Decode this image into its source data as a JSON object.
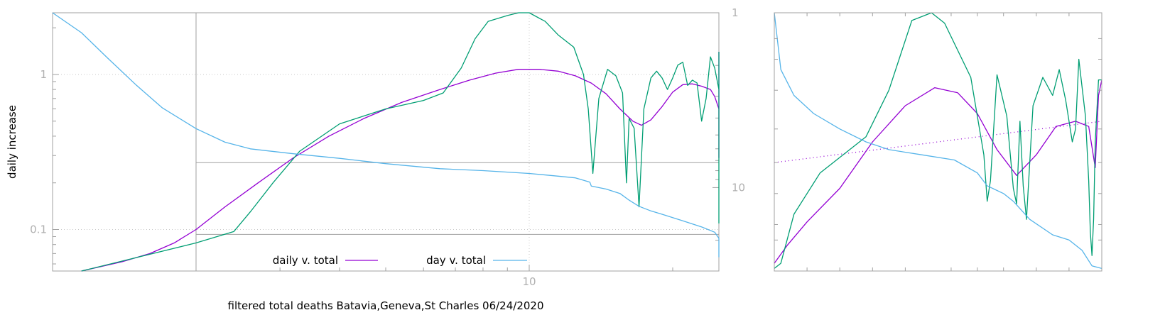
{
  "chart_data": [
    {
      "type": "line",
      "title": "",
      "xlabel": "filtered total deaths Batavia,Geneva,St Charles 06/24/2020",
      "ylabel": "daily increase",
      "x_scale": "log",
      "y_scale": "log",
      "y2_scale": "log",
      "xlim": [
        1,
        25
      ],
      "ylim": [
        0.054,
        2.5
      ],
      "y2lim": [
        30,
        1
      ],
      "x_ticks": [
        {
          "value": 10,
          "label": "10"
        }
      ],
      "y_ticks": [
        {
          "value": 0.1,
          "label": "0.1"
        },
        {
          "value": 1,
          "label": "1"
        }
      ],
      "y2_ticks": [
        {
          "value": 1,
          "label": "1"
        },
        {
          "value": 10,
          "label": "10"
        }
      ],
      "grid": true,
      "legend": {
        "placement": "bottom-center",
        "entries": [
          {
            "label": "daily v. total",
            "color": "#9400d3"
          },
          {
            "label": "day v. total",
            "color": "#56b4e9"
          }
        ]
      },
      "reference_lines": {
        "y_upper": 0.27,
        "y_lower": 0.093,
        "x": 2
      },
      "series": [
        {
          "color": "#9400d3",
          "axis": "y",
          "points": [
            [
              1.15,
              0.054
            ],
            [
              1.4,
              0.062
            ],
            [
              1.6,
              0.07
            ],
            [
              1.8,
              0.082
            ],
            [
              2.0,
              0.1
            ],
            [
              2.3,
              0.14
            ],
            [
              2.7,
              0.2
            ],
            [
              3.2,
              0.29
            ],
            [
              3.8,
              0.4
            ],
            [
              4.5,
              0.52
            ],
            [
              5.4,
              0.66
            ],
            [
              6.5,
              0.8
            ],
            [
              7.5,
              0.92
            ],
            [
              8.5,
              1.02
            ],
            [
              9.5,
              1.08
            ],
            [
              10.5,
              1.08
            ],
            [
              11.5,
              1.05
            ],
            [
              12.5,
              0.98
            ],
            [
              13.5,
              0.88
            ],
            [
              14.5,
              0.75
            ],
            [
              15.5,
              0.6
            ],
            [
              16.5,
              0.5
            ],
            [
              17.2,
              0.47
            ],
            [
              18.0,
              0.51
            ],
            [
              19.0,
              0.62
            ],
            [
              20.0,
              0.77
            ],
            [
              21.0,
              0.86
            ],
            [
              22.0,
              0.87
            ],
            [
              23.0,
              0.84
            ],
            [
              24.0,
              0.8
            ],
            [
              24.5,
              0.72
            ],
            [
              25.0,
              0.6
            ],
            [
              25.4,
              0.38
            ],
            [
              25.7,
              0.29
            ],
            [
              26.0,
              0.32
            ],
            [
              26.4,
              0.8
            ],
            [
              27.0,
              1.3
            ],
            [
              27.5,
              1.4
            ]
          ]
        },
        {
          "color": "#009e73",
          "axis": "y",
          "points": [
            [
              1.15,
              0.054
            ],
            [
              1.5,
              0.066
            ],
            [
              2.0,
              0.082
            ],
            [
              2.4,
              0.097
            ],
            [
              2.6,
              0.13
            ],
            [
              2.9,
              0.2
            ],
            [
              3.3,
              0.32
            ],
            [
              4.0,
              0.48
            ],
            [
              5.0,
              0.6
            ],
            [
              6.0,
              0.68
            ],
            [
              6.6,
              0.76
            ],
            [
              7.2,
              1.1
            ],
            [
              7.7,
              1.7
            ],
            [
              8.2,
              2.2
            ],
            [
              9.0,
              2.4
            ],
            [
              9.5,
              2.5
            ],
            [
              10.0,
              2.5
            ],
            [
              10.8,
              2.2
            ],
            [
              11.5,
              1.8
            ],
            [
              12.4,
              1.5
            ],
            [
              13.0,
              1.0
            ],
            [
              13.3,
              0.6
            ],
            [
              13.6,
              0.23
            ],
            [
              14.0,
              0.7
            ],
            [
              14.6,
              1.08
            ],
            [
              15.2,
              0.98
            ],
            [
              15.7,
              0.76
            ],
            [
              16.0,
              0.2
            ],
            [
              16.2,
              0.52
            ],
            [
              16.6,
              0.45
            ],
            [
              17.0,
              0.14
            ],
            [
              17.4,
              0.6
            ],
            [
              18.0,
              0.95
            ],
            [
              18.5,
              1.05
            ],
            [
              19.0,
              0.95
            ],
            [
              19.5,
              0.8
            ],
            [
              20.0,
              0.95
            ],
            [
              20.5,
              1.15
            ],
            [
              21.0,
              1.2
            ],
            [
              21.5,
              0.85
            ],
            [
              22.0,
              0.92
            ],
            [
              22.5,
              0.88
            ],
            [
              23.0,
              0.5
            ],
            [
              23.5,
              0.7
            ],
            [
              24.0,
              1.3
            ],
            [
              24.5,
              1.1
            ],
            [
              25.0,
              0.8
            ],
            [
              25.2,
              0.28
            ],
            [
              25.4,
              0.42
            ],
            [
              25.7,
              0.11
            ],
            [
              26.0,
              0.38
            ],
            [
              26.4,
              1.2
            ],
            [
              27.0,
              1.4
            ],
            [
              27.5,
              1.4
            ]
          ]
        },
        {
          "color": "#56b4e9",
          "axis": "y2",
          "points": [
            [
              1.0,
              1.0
            ],
            [
              1.15,
              1.3
            ],
            [
              1.3,
              1.8
            ],
            [
              1.5,
              2.6
            ],
            [
              1.7,
              3.5
            ],
            [
              2.0,
              4.6
            ],
            [
              2.3,
              5.5
            ],
            [
              2.6,
              6.0
            ],
            [
              3.2,
              6.4
            ],
            [
              4.0,
              6.8
            ],
            [
              5.0,
              7.3
            ],
            [
              6.5,
              7.8
            ],
            [
              8.0,
              8.0
            ],
            [
              10.0,
              8.3
            ],
            [
              11.5,
              8.6
            ],
            [
              12.5,
              8.8
            ],
            [
              13.4,
              9.3
            ],
            [
              13.5,
              9.8
            ],
            [
              14.5,
              10.2
            ],
            [
              15.5,
              10.8
            ],
            [
              16.2,
              11.8
            ],
            [
              17.0,
              12.8
            ],
            [
              18.0,
              13.6
            ],
            [
              19.0,
              14.2
            ],
            [
              21.0,
              15.5
            ],
            [
              23.0,
              16.8
            ],
            [
              24.5,
              18.0
            ],
            [
              25.2,
              19.5
            ],
            [
              25.6,
              22.0
            ],
            [
              26.2,
              24.5
            ],
            [
              27.5,
              25.0
            ]
          ]
        }
      ]
    },
    {
      "type": "line",
      "title": "",
      "grid": false,
      "x_scale": "log",
      "y_scale": "log",
      "series": [
        {
          "color": "#9400d3",
          "style": "solid",
          "points": [
            [
              0.0,
              0.03
            ],
            [
              0.04,
              0.1
            ],
            [
              0.1,
              0.19
            ],
            [
              0.2,
              0.32
            ],
            [
              0.3,
              0.5
            ],
            [
              0.4,
              0.64
            ],
            [
              0.49,
              0.71
            ],
            [
              0.56,
              0.69
            ],
            [
              0.62,
              0.61
            ],
            [
              0.68,
              0.47
            ],
            [
              0.74,
              0.37
            ],
            [
              0.8,
              0.45
            ],
            [
              0.86,
              0.56
            ],
            [
              0.92,
              0.58
            ],
            [
              0.96,
              0.56
            ],
            [
              0.98,
              0.4
            ],
            [
              0.99,
              0.68
            ],
            [
              1.0,
              0.74
            ]
          ]
        },
        {
          "color": "#9400d3",
          "style": "dotted",
          "points": [
            [
              0.0,
              0.42
            ],
            [
              1.0,
              0.58
            ]
          ]
        },
        {
          "color": "#009e73",
          "style": "solid",
          "points": [
            [
              0.0,
              0.01
            ],
            [
              0.02,
              0.03
            ],
            [
              0.06,
              0.22
            ],
            [
              0.14,
              0.38
            ],
            [
              0.22,
              0.46
            ],
            [
              0.28,
              0.52
            ],
            [
              0.35,
              0.7
            ],
            [
              0.42,
              0.97
            ],
            [
              0.48,
              1.0
            ],
            [
              0.52,
              0.96
            ],
            [
              0.6,
              0.75
            ],
            [
              0.64,
              0.45
            ],
            [
              0.65,
              0.27
            ],
            [
              0.66,
              0.35
            ],
            [
              0.68,
              0.76
            ],
            [
              0.71,
              0.6
            ],
            [
              0.73,
              0.32
            ],
            [
              0.74,
              0.26
            ],
            [
              0.75,
              0.58
            ],
            [
              0.76,
              0.33
            ],
            [
              0.77,
              0.2
            ],
            [
              0.79,
              0.64
            ],
            [
              0.82,
              0.75
            ],
            [
              0.85,
              0.68
            ],
            [
              0.87,
              0.78
            ],
            [
              0.89,
              0.66
            ],
            [
              0.91,
              0.5
            ],
            [
              0.92,
              0.55
            ],
            [
              0.93,
              0.82
            ],
            [
              0.95,
              0.6
            ],
            [
              0.96,
              0.35
            ],
            [
              0.965,
              0.15
            ],
            [
              0.97,
              0.06
            ],
            [
              0.975,
              0.2
            ],
            [
              0.98,
              0.5
            ],
            [
              0.99,
              0.74
            ],
            [
              1.0,
              0.74
            ]
          ]
        },
        {
          "color": "#56b4e9",
          "style": "solid",
          "points": [
            [
              0.0,
              1.0
            ],
            [
              0.02,
              0.78
            ],
            [
              0.06,
              0.68
            ],
            [
              0.12,
              0.61
            ],
            [
              0.2,
              0.55
            ],
            [
              0.28,
              0.5
            ],
            [
              0.35,
              0.47
            ],
            [
              0.45,
              0.45
            ],
            [
              0.55,
              0.43
            ],
            [
              0.62,
              0.38
            ],
            [
              0.65,
              0.33
            ],
            [
              0.7,
              0.3
            ],
            [
              0.73,
              0.27
            ],
            [
              0.78,
              0.2
            ],
            [
              0.85,
              0.14
            ],
            [
              0.9,
              0.12
            ],
            [
              0.94,
              0.08
            ],
            [
              0.97,
              0.02
            ],
            [
              1.0,
              0.01
            ]
          ]
        }
      ]
    }
  ]
}
